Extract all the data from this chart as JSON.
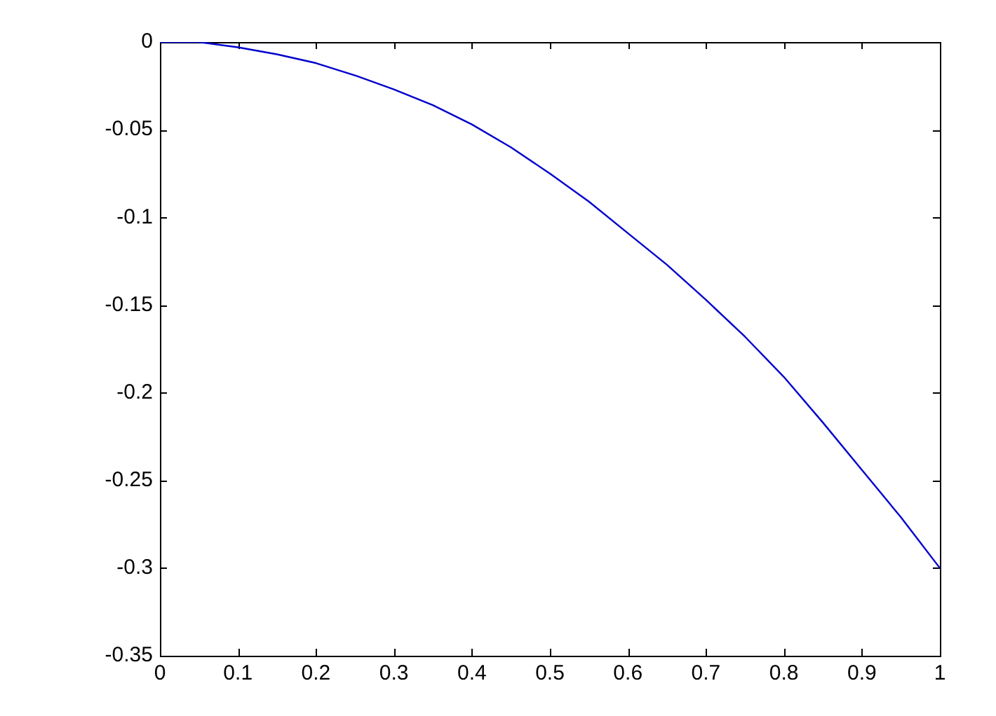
{
  "chart_data": {
    "type": "line",
    "x": [
      0,
      0.05,
      0.1,
      0.15,
      0.2,
      0.25,
      0.3,
      0.35,
      0.4,
      0.45,
      0.5,
      0.55,
      0.6,
      0.65,
      0.7,
      0.75,
      0.8,
      0.85,
      0.9,
      0.95,
      1
    ],
    "values": [
      0,
      0,
      -0.003,
      -0.007,
      -0.012,
      -0.019,
      -0.027,
      -0.036,
      -0.047,
      -0.06,
      -0.075,
      -0.091,
      -0.109,
      -0.127,
      -0.147,
      -0.168,
      -0.191,
      -0.217,
      -0.244,
      -0.271,
      -0.3
    ],
    "color": "#0000cc",
    "line_style": "solid",
    "xlim": [
      0,
      1
    ],
    "xticks": [
      0,
      0.1,
      0.2,
      0.3,
      0.4,
      0.5,
      0.6,
      0.7,
      0.8,
      0.9,
      1
    ],
    "ylim": [
      -0.35,
      0
    ],
    "yticks": [
      -0.35,
      -0.3,
      -0.25,
      -0.2,
      -0.15,
      -0.1,
      -0.05,
      0
    ]
  }
}
